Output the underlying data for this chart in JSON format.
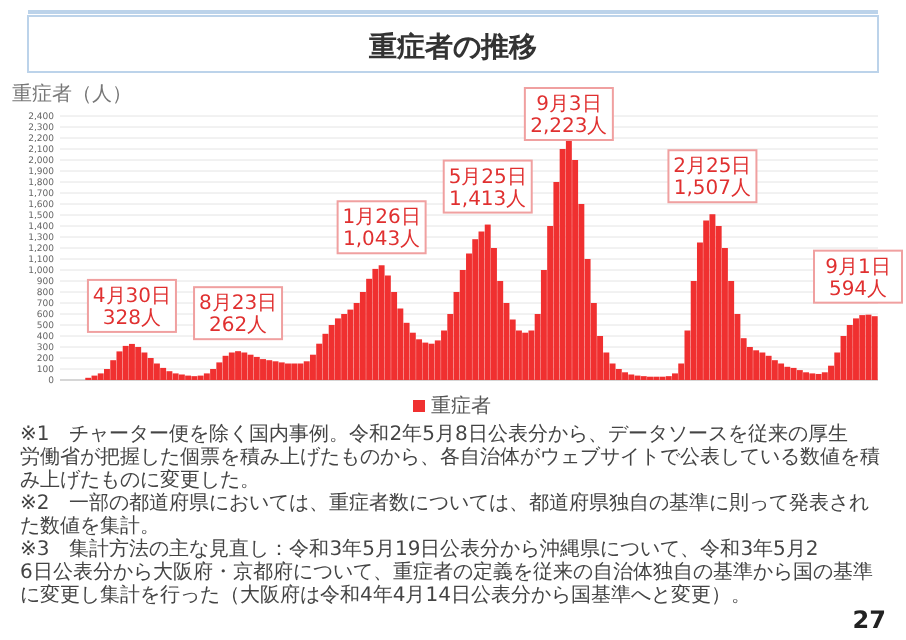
{
  "chart_data": {
    "type": "bar",
    "title": "重症者の推移",
    "ylabel": "重症者（人）",
    "categories": [
      null,
      null,
      null,
      null,
      null,
      null,
      null,
      null,
      null,
      null,
      null,
      null,
      null,
      null,
      null,
      null,
      null,
      null,
      null,
      null,
      null,
      null,
      null,
      null,
      null,
      null,
      null,
      null,
      null,
      null,
      null,
      null,
      null,
      null,
      null,
      null,
      null,
      null,
      null,
      null,
      null,
      null,
      null,
      null,
      null,
      null,
      null,
      null,
      null,
      null,
      null,
      null,
      null,
      null,
      null,
      null,
      null,
      null,
      null,
      null,
      null,
      null,
      null,
      null,
      null,
      null,
      null,
      null,
      null,
      null,
      null,
      null,
      null,
      null,
      null,
      null,
      null,
      null,
      null,
      null,
      null,
      null,
      null,
      null,
      null,
      null,
      null,
      null,
      null,
      null,
      null,
      null,
      null,
      null,
      null,
      null,
      null,
      null,
      null,
      null,
      null,
      null,
      null,
      null,
      null,
      null,
      null,
      null,
      null,
      null,
      null,
      null,
      null,
      null,
      null,
      null,
      null,
      null,
      null,
      null,
      null,
      null,
      null,
      null,
      null,
      null,
      null,
      null,
      null,
      null,
      null
    ],
    "series": [
      {
        "name": "重症者",
        "color": "#f03030",
        "values": [
          0,
          0,
          0,
          0,
          20,
          40,
          60,
          100,
          180,
          260,
          310,
          328,
          300,
          250,
          200,
          150,
          110,
          80,
          60,
          50,
          40,
          35,
          40,
          60,
          100,
          160,
          220,
          250,
          262,
          250,
          230,
          210,
          190,
          180,
          170,
          160,
          150,
          150,
          150,
          170,
          230,
          330,
          420,
          500,
          560,
          600,
          640,
          700,
          800,
          920,
          1010,
          1043,
          950,
          800,
          650,
          520,
          430,
          370,
          340,
          330,
          360,
          450,
          600,
          800,
          1000,
          1150,
          1280,
          1350,
          1413,
          1200,
          900,
          700,
          550,
          450,
          430,
          450,
          600,
          1000,
          1400,
          1800,
          2100,
          2223,
          2000,
          1600,
          1100,
          700,
          400,
          250,
          150,
          100,
          70,
          50,
          40,
          35,
          30,
          30,
          30,
          35,
          60,
          150,
          450,
          900,
          1250,
          1450,
          1507,
          1400,
          1200,
          900,
          600,
          380,
          300,
          270,
          250,
          220,
          180,
          150,
          120,
          110,
          90,
          70,
          60,
          55,
          70,
          130,
          250,
          400,
          500,
          560,
          590,
          594,
          580
        ]
      }
    ],
    "ylim": [
      0,
      2400
    ],
    "yticks": [
      0,
      {
        "value": 100,
        "label": "100"
      },
      200,
      300,
      400,
      500,
      600,
      700,
      800,
      900,
      {
        "value": 1000,
        "label": "1,000"
      },
      {
        "value": 1100,
        "label": "1,100"
      },
      {
        "value": 1200,
        "label": "1,200"
      },
      {
        "value": 1300,
        "label": "1,300"
      },
      {
        "value": 1400,
        "label": "1,400"
      },
      {
        "value": 1500,
        "label": "1,500"
      },
      {
        "value": 1600,
        "label": "1,600"
      },
      {
        "value": 1700,
        "label": "1,700"
      },
      {
        "value": 1800,
        "label": "1,800"
      },
      {
        "value": 1900,
        "label": "1,900"
      },
      {
        "value": 2000,
        "label": "2,000"
      },
      {
        "value": 2100,
        "label": "2,100"
      },
      {
        "value": 2200,
        "label": "2,200"
      },
      {
        "value": 2300,
        "label": "2,300"
      },
      {
        "value": 2400,
        "label": "2,400"
      }
    ],
    "grid": "y",
    "legend": "bottom",
    "annotations": [
      {
        "text": "4月30日\n328人",
        "y": 328
      },
      {
        "text": "8月23日\n262人",
        "y": 262
      },
      {
        "text": "1月26日\n1,043人",
        "y": 1043
      },
      {
        "text": "5月25日\n1,413人",
        "y": 1413
      },
      {
        "text": "9月3日\n2,223人",
        "y": 2223
      },
      {
        "text": "2月25日\n1,507人",
        "y": 1507
      },
      {
        "text": "9月1日\n594人",
        "y": 594
      },
      "※1　チャーター便を除く国内事例。令和2年5月8日公表分から、データソースを従来の厚生労働省が把握した個票を積み上げたものから、各自治体がウェブサイトで公表している数値を積み上げたものに変更した。",
      "※2　一部の都道府県においては、重症者数については、都道府県独自の基準に則って発表された数値を集計。",
      "※3　集計方法の主な見直し：令和3年5月19日公表分から沖縄県について、令和3年5月26日公表分から大阪府・京都府について、重症者の定義を従来の自治体独自の基準から国の基準に変更し集計を行った（大阪府は令和4年4月14日公表分から国基準へと変更）。",
      "27"
    ]
  }
}
